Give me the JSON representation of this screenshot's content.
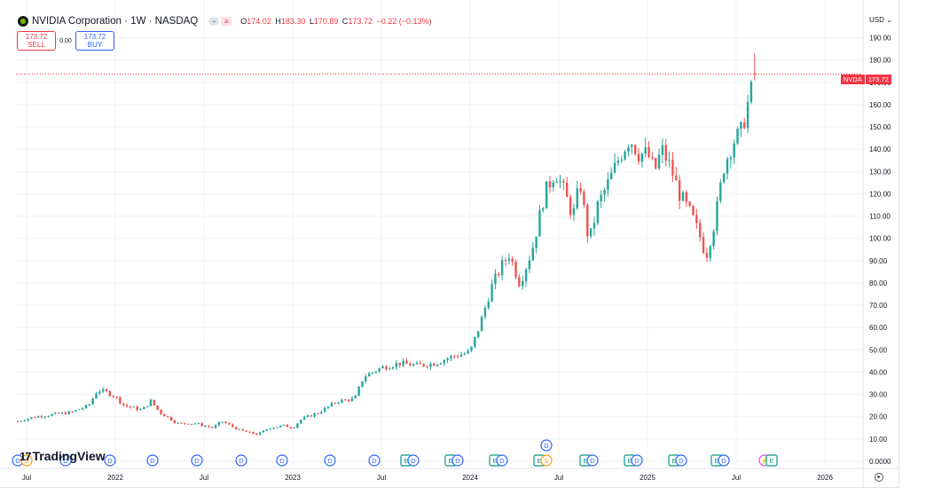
{
  "header": {
    "symbol_title": "NVIDIA Corporation · 1W · NASDAQ",
    "ctrl_pill_label": "−",
    "ctrl_box_label": "≡",
    "ohlc": {
      "o_label": "O",
      "o_value": "174.02",
      "h_label": "H",
      "h_value": "183.30",
      "l_label": "L",
      "l_value": "170.89",
      "c_label": "C",
      "c_value": "173.72",
      "change": "−0.22 (−0.13%)"
    }
  },
  "trade": {
    "sell_price": "173.72",
    "sell_label": "SELL",
    "spread": "0.00",
    "buy_price": "173.72",
    "buy_label": "BUY"
  },
  "price_axis": {
    "currency": "USD",
    "tag_symbol": "NVDA",
    "tag_price": "173.72"
  },
  "branding": {
    "logo_text": "TradingView",
    "logo_mark": "17"
  },
  "colors": {
    "up": "#26a69a",
    "down": "#ef5350",
    "grid": "#f0f3fa",
    "last_price_line": "#f23645",
    "event_blue": "#2962ff",
    "event_green": "#089981",
    "event_orange": "#ff9800",
    "event_purple": "#9c27b0",
    "event_magenta": "#e040fb"
  },
  "chart_data": {
    "type": "candlestick",
    "timeframe": "1W",
    "ylim": [
      0,
      195
    ],
    "yticks": [
      0,
      10,
      20,
      30,
      40,
      50,
      60,
      70,
      80,
      90,
      100,
      110,
      120,
      130,
      140,
      150,
      160,
      170,
      180,
      190
    ],
    "ytick_labels": [
      "0.0000",
      "10.00",
      "20.00",
      "30.00",
      "40.00",
      "50.00",
      "60.00",
      "70.00",
      "80.00",
      "90.00",
      "100.00",
      "110.00",
      "120.00",
      "130.00",
      "140.00",
      "150.00",
      "160.00",
      "170.00",
      "180.00",
      "190.00"
    ],
    "xlim": [
      2021.44,
      2026.21
    ],
    "xticks": [
      {
        "label": "Jul",
        "t": 2021.5
      },
      {
        "label": "2022",
        "t": 2022.0
      },
      {
        "label": "Jul",
        "t": 2022.5
      },
      {
        "label": "2023",
        "t": 2023.0
      },
      {
        "label": "Jul",
        "t": 2023.5
      },
      {
        "label": "2024",
        "t": 2024.0
      },
      {
        "label": "Jul",
        "t": 2024.5
      },
      {
        "label": "2025",
        "t": 2025.0
      },
      {
        "label": "Jul",
        "t": 2025.5
      },
      {
        "label": "2026",
        "t": 2026.0
      }
    ],
    "last_price": 173.72,
    "trend_points": [
      [
        2021.45,
        18
      ],
      [
        2021.55,
        20
      ],
      [
        2021.65,
        21
      ],
      [
        2021.75,
        22
      ],
      [
        2021.85,
        25
      ],
      [
        2021.9,
        32
      ],
      [
        2021.95,
        31
      ],
      [
        2022.0,
        29
      ],
      [
        2022.05,
        25
      ],
      [
        2022.1,
        24
      ],
      [
        2022.15,
        23
      ],
      [
        2022.2,
        27
      ],
      [
        2022.25,
        22
      ],
      [
        2022.35,
        17
      ],
      [
        2022.45,
        17
      ],
      [
        2022.55,
        15
      ],
      [
        2022.6,
        18
      ],
      [
        2022.7,
        14
      ],
      [
        2022.8,
        12
      ],
      [
        2022.87,
        15
      ],
      [
        2022.95,
        16
      ],
      [
        2023.0,
        15
      ],
      [
        2023.05,
        19
      ],
      [
        2023.15,
        22
      ],
      [
        2023.25,
        27
      ],
      [
        2023.35,
        28
      ],
      [
        2023.4,
        38
      ],
      [
        2023.5,
        42
      ],
      [
        2023.6,
        44
      ],
      [
        2023.7,
        43
      ],
      [
        2023.8,
        44
      ],
      [
        2023.9,
        47
      ],
      [
        2024.0,
        49
      ],
      [
        2024.05,
        60
      ],
      [
        2024.12,
        78
      ],
      [
        2024.18,
        88
      ],
      [
        2024.22,
        93
      ],
      [
        2024.28,
        80
      ],
      [
        2024.35,
        95
      ],
      [
        2024.42,
        120
      ],
      [
        2024.48,
        130
      ],
      [
        2024.52,
        123
      ],
      [
        2024.58,
        110
      ],
      [
        2024.62,
        125
      ],
      [
        2024.67,
        98
      ],
      [
        2024.72,
        115
      ],
      [
        2024.78,
        125
      ],
      [
        2024.85,
        138
      ],
      [
        2024.9,
        145
      ],
      [
        2024.95,
        138
      ],
      [
        2025.0,
        138
      ],
      [
        2025.04,
        130
      ],
      [
        2025.08,
        140
      ],
      [
        2025.13,
        132
      ],
      [
        2025.18,
        120
      ],
      [
        2025.25,
        110
      ],
      [
        2025.3,
        100
      ],
      [
        2025.33,
        92
      ],
      [
        2025.38,
        108
      ],
      [
        2025.43,
        132
      ],
      [
        2025.48,
        143
      ],
      [
        2025.53,
        148
      ],
      [
        2025.57,
        162
      ],
      [
        2025.6,
        170
      ],
      [
        2025.62,
        173.72
      ]
    ],
    "events": [
      {
        "type": "D",
        "t": 2021.45
      },
      {
        "type": "S",
        "t": 2021.5
      },
      {
        "type": "D",
        "t": 2021.72
      },
      {
        "type": "D",
        "t": 2021.97
      },
      {
        "type": "D",
        "t": 2022.21
      },
      {
        "type": "D",
        "t": 2022.46
      },
      {
        "type": "D",
        "t": 2022.71
      },
      {
        "type": "D",
        "t": 2022.94
      },
      {
        "type": "D",
        "t": 2023.21
      },
      {
        "type": "D",
        "t": 2023.46
      },
      {
        "type": "E",
        "t": 2023.64
      },
      {
        "type": "D",
        "t": 2023.68
      },
      {
        "type": "E",
        "t": 2023.89
      },
      {
        "type": "D",
        "t": 2023.93
      },
      {
        "type": "E",
        "t": 2024.14
      },
      {
        "type": "D",
        "t": 2024.18
      },
      {
        "type": "E",
        "t": 2024.39
      },
      {
        "type": "S",
        "t": 2024.43
      },
      {
        "type": "D",
        "t": 2024.43,
        "row": 2
      },
      {
        "type": "E",
        "t": 2024.65
      },
      {
        "type": "D",
        "t": 2024.69
      },
      {
        "type": "E",
        "t": 2024.9
      },
      {
        "type": "D",
        "t": 2024.94
      },
      {
        "type": "E",
        "t": 2025.15
      },
      {
        "type": "D",
        "t": 2025.19
      },
      {
        "type": "E",
        "t": 2025.39
      },
      {
        "type": "D",
        "t": 2025.43
      },
      {
        "type": "⚡",
        "t": 2025.66
      },
      {
        "type": "E",
        "t": 2025.7
      }
    ]
  }
}
